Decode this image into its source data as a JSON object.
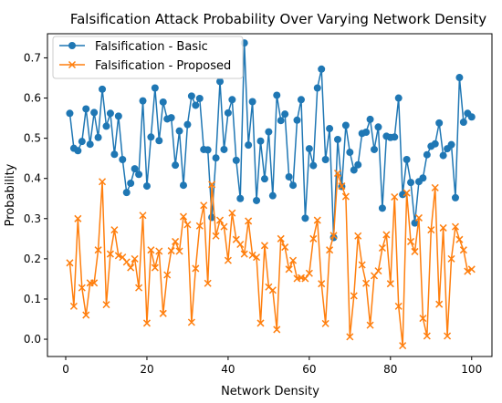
{
  "chart_data": {
    "type": "line",
    "title": "Falsification Attack Probability Over Varying Network Density",
    "xlabel": "Network Density",
    "ylabel": "Probability",
    "xlim": [
      -4.5,
      105
    ],
    "ylim": [
      -0.043,
      0.76
    ],
    "xticks": [
      0,
      20,
      40,
      60,
      80,
      100
    ],
    "yticks": [
      0.0,
      0.1,
      0.2,
      0.3,
      0.4,
      0.5,
      0.6,
      0.7
    ],
    "ytick_labels": [
      "0.0",
      "0.1",
      "0.2",
      "0.3",
      "0.4",
      "0.5",
      "0.6",
      "0.7"
    ],
    "grid": false,
    "legend": "top-left",
    "x": [
      1,
      2,
      3,
      4,
      5,
      6,
      7,
      8,
      9,
      10,
      11,
      12,
      13,
      14,
      15,
      16,
      17,
      18,
      19,
      20,
      21,
      22,
      23,
      24,
      25,
      26,
      27,
      28,
      29,
      30,
      31,
      32,
      33,
      34,
      35,
      36,
      37,
      38,
      39,
      40,
      41,
      42,
      43,
      44,
      45,
      46,
      47,
      48,
      49,
      50,
      51,
      52,
      53,
      54,
      55,
      56,
      57,
      58,
      59,
      60,
      61,
      62,
      63,
      64,
      65,
      66,
      67,
      68,
      69,
      70,
      71,
      72,
      73,
      74,
      75,
      76,
      77,
      78,
      79,
      80,
      81,
      82,
      83,
      84,
      85,
      86,
      87,
      88,
      89,
      90,
      91,
      92,
      93,
      94,
      95,
      96,
      97,
      98,
      99,
      100
    ],
    "series": [
      {
        "name": "Falsification - Basic",
        "color": "#1f77b4",
        "marker": "circle",
        "values": [
          0.562,
          0.475,
          0.469,
          0.492,
          0.573,
          0.485,
          0.564,
          0.502,
          0.622,
          0.53,
          0.562,
          0.46,
          0.555,
          0.447,
          0.365,
          0.388,
          0.424,
          0.41,
          0.593,
          0.381,
          0.503,
          0.625,
          0.494,
          0.59,
          0.548,
          0.551,
          0.433,
          0.518,
          0.383,
          0.534,
          0.605,
          0.582,
          0.599,
          0.472,
          0.471,
          0.303,
          0.451,
          0.641,
          0.472,
          0.563,
          0.596,
          0.445,
          0.35,
          0.737,
          0.483,
          0.591,
          0.345,
          0.493,
          0.399,
          0.516,
          0.357,
          0.607,
          0.544,
          0.56,
          0.404,
          0.383,
          0.545,
          0.596,
          0.301,
          0.474,
          0.432,
          0.625,
          0.672,
          0.447,
          0.524,
          0.253,
          0.497,
          0.38,
          0.532,
          0.465,
          0.421,
          0.434,
          0.512,
          0.515,
          0.547,
          0.472,
          0.528,
          0.326,
          0.505,
          0.502,
          0.503,
          0.6,
          0.36,
          0.447,
          0.39,
          0.289,
          0.392,
          0.401,
          0.459,
          0.48,
          0.486,
          0.538,
          0.457,
          0.474,
          0.484,
          0.352,
          0.651,
          0.54,
          0.562,
          0.553
        ]
      },
      {
        "name": "Falsification - Proposed",
        "color": "#ff7f0e",
        "marker": "x",
        "values": [
          0.19,
          0.082,
          0.3,
          0.128,
          0.06,
          0.14,
          0.14,
          0.222,
          0.392,
          0.086,
          0.212,
          0.272,
          0.208,
          0.204,
          0.192,
          0.178,
          0.2,
          0.128,
          0.308,
          0.04,
          0.222,
          0.178,
          0.219,
          0.064,
          0.16,
          0.22,
          0.243,
          0.219,
          0.305,
          0.285,
          0.042,
          0.176,
          0.282,
          0.333,
          0.139,
          0.385,
          0.257,
          0.296,
          0.28,
          0.196,
          0.314,
          0.248,
          0.236,
          0.212,
          0.294,
          0.209,
          0.204,
          0.04,
          0.233,
          0.13,
          0.122,
          0.024,
          0.25,
          0.229,
          0.174,
          0.196,
          0.151,
          0.153,
          0.151,
          0.164,
          0.25,
          0.296,
          0.138,
          0.039,
          0.222,
          0.258,
          0.413,
          0.381,
          0.355,
          0.006,
          0.108,
          0.257,
          0.185,
          0.139,
          0.035,
          0.158,
          0.17,
          0.227,
          0.26,
          0.138,
          0.354,
          0.082,
          -0.016,
          0.364,
          0.243,
          0.218,
          0.302,
          0.052,
          0.008,
          0.272,
          0.377,
          0.087,
          0.277,
          0.008,
          0.2,
          0.28,
          0.248,
          0.222,
          0.169,
          0.174
        ]
      }
    ]
  }
}
